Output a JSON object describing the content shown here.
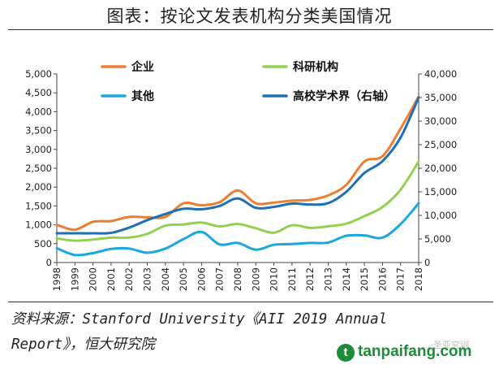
{
  "title": "图表：按论文发表机构分类美国情况",
  "source_text": "资料来源：Stanford University《AII 2019 Annual Report》，恒大研究院",
  "watermark": {
    "logo_glyph": "t",
    "text": "tanpaifang.com",
    "faint_text": "...·圣亚究训"
  },
  "chart_data": {
    "type": "line",
    "x": [
      "1998",
      "1999",
      "2000",
      "2001",
      "2002",
      "2003",
      "2004",
      "2005",
      "2006",
      "2007",
      "2008",
      "2009",
      "2010",
      "2011",
      "2012",
      "2013",
      "2014",
      "2015",
      "2016",
      "2017",
      "2018"
    ],
    "y_left": {
      "lim": [
        0,
        5000
      ],
      "ticks": [
        "0",
        "500",
        "1,000",
        "1,500",
        "2,000",
        "2,500",
        "3,000",
        "3,500",
        "4,000",
        "4,500",
        "5,000"
      ]
    },
    "y_right": {
      "lim": [
        0,
        40000
      ],
      "ticks": [
        "0",
        "5,000",
        "10,000",
        "15,000",
        "20,000",
        "25,000",
        "30,000",
        "35,000",
        "40,000"
      ]
    },
    "series": [
      {
        "name": "企业",
        "axis": "left",
        "color": "#ed7d31",
        "values": [
          1000,
          870,
          1080,
          1100,
          1210,
          1200,
          1210,
          1570,
          1520,
          1600,
          1910,
          1570,
          1590,
          1640,
          1660,
          1780,
          2060,
          2680,
          2820,
          3550,
          4400
        ]
      },
      {
        "name": "科研机构",
        "axis": "left",
        "color": "#92d050",
        "values": [
          640,
          580,
          610,
          660,
          660,
          760,
          980,
          1010,
          1060,
          960,
          1020,
          910,
          790,
          990,
          920,
          960,
          1030,
          1230,
          1470,
          1930,
          2680
        ]
      },
      {
        "name": "其他",
        "axis": "left",
        "color": "#1aa7e0",
        "values": [
          380,
          200,
          250,
          360,
          370,
          260,
          370,
          620,
          810,
          480,
          520,
          340,
          470,
          490,
          520,
          530,
          710,
          720,
          660,
          1020,
          1570
        ]
      },
      {
        "name": "高校学术界（右轴）",
        "axis": "right",
        "color": "#1f6fb4",
        "values": [
          6200,
          6200,
          6200,
          6300,
          7400,
          9000,
          10300,
          11400,
          11300,
          12000,
          13600,
          11600,
          11800,
          12500,
          12300,
          12600,
          15000,
          19000,
          21500,
          26500,
          35000
        ]
      }
    ]
  }
}
